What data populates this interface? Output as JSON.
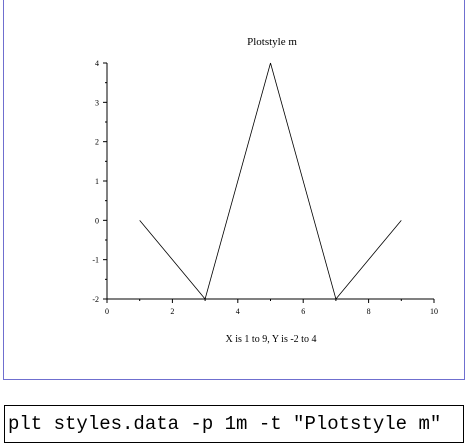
{
  "command": "plt styles.data -p 1m -t \"Plotstyle m\"",
  "chart_data": {
    "type": "line",
    "title": "Plotstyle m",
    "xlabel": "X is 1 to 9,  Y is -2 to 4",
    "ylabel": "",
    "xlim": [
      0,
      10
    ],
    "ylim": [
      -2,
      4
    ],
    "x_ticks": [
      0,
      2,
      4,
      6,
      8,
      10
    ],
    "y_ticks": [
      -2,
      -1,
      0,
      1,
      2,
      3,
      4
    ],
    "grid": false,
    "series": [
      {
        "x": [
          1,
          3,
          5,
          7,
          9
        ],
        "y": [
          0,
          -2,
          4,
          -2,
          0
        ],
        "color": "#000000"
      }
    ]
  }
}
